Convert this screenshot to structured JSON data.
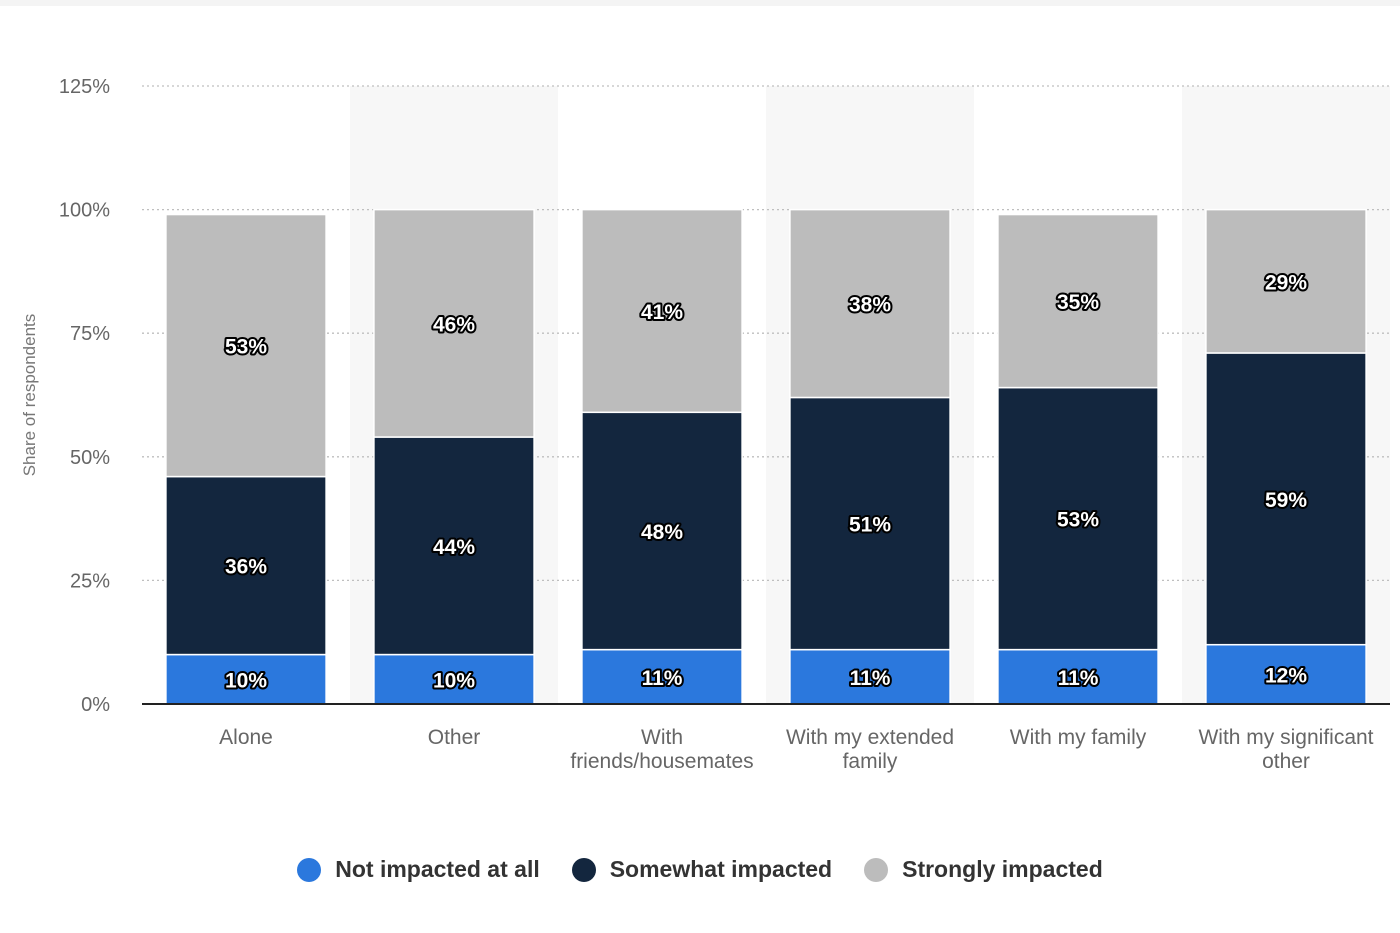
{
  "chart_data": {
    "type": "bar",
    "stacked": true,
    "ylabel": "Share of respondents",
    "xlabel": "",
    "ylim": [
      0,
      125
    ],
    "yticks": [
      0,
      25,
      50,
      75,
      100,
      125
    ],
    "ytick_labels": [
      "0%",
      "25%",
      "50%",
      "75%",
      "100%",
      "125%"
    ],
    "grid": true,
    "legend_position": "bottom",
    "categories": [
      [
        "Alone"
      ],
      [
        "Other"
      ],
      [
        "With",
        "friends/housemates"
      ],
      [
        "With my extended",
        "family"
      ],
      [
        "With my family"
      ],
      [
        "With my significant",
        "other"
      ]
    ],
    "series": [
      {
        "name": "Not impacted at all",
        "color": "#2b78dd",
        "values": [
          10,
          10,
          11,
          11,
          11,
          12
        ],
        "labels": [
          "10%",
          "10%",
          "11%",
          "11%",
          "11%",
          "12%"
        ]
      },
      {
        "name": "Somewhat impacted",
        "color": "#13263e",
        "values": [
          36,
          44,
          48,
          51,
          53,
          59
        ],
        "labels": [
          "36%",
          "44%",
          "48%",
          "51%",
          "53%",
          "59%"
        ]
      },
      {
        "name": "Strongly impacted",
        "color": "#bcbcbc",
        "values": [
          53,
          46,
          41,
          38,
          35,
          29
        ],
        "labels": [
          "53%",
          "46%",
          "41%",
          "38%",
          "35%",
          "29%"
        ]
      }
    ]
  }
}
